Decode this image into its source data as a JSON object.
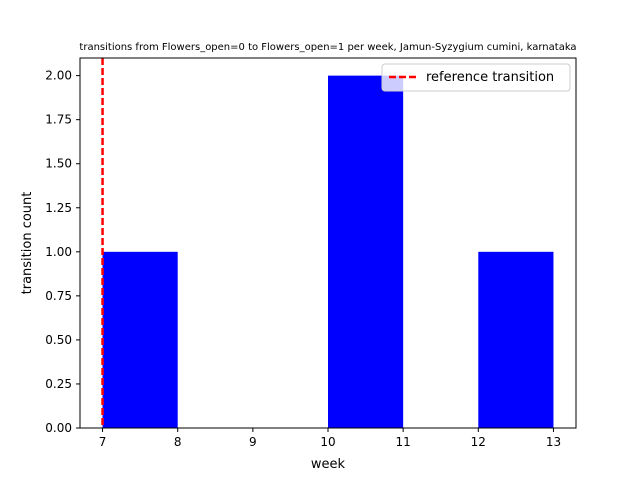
{
  "chart_data": {
    "type": "bar",
    "title": "transitions from Flowers_open=0 to Flowers_open=1 per week, Jamun-Syzygium cumini, karnataka",
    "xlabel": "week",
    "ylabel": "transition count",
    "xlim": [
      6.7,
      13.3
    ],
    "ylim": [
      0,
      2.1
    ],
    "x_ticks": [
      "7",
      "8",
      "9",
      "10",
      "11",
      "12",
      "13"
    ],
    "y_ticks": [
      "0.00",
      "0.25",
      "0.50",
      "0.75",
      "1.00",
      "1.25",
      "1.50",
      "1.75",
      "2.00"
    ],
    "bars": [
      {
        "x_start": 7,
        "x_end": 8,
        "value": 1
      },
      {
        "x_start": 8,
        "x_end": 9,
        "value": 0
      },
      {
        "x_start": 9,
        "x_end": 10,
        "value": 0
      },
      {
        "x_start": 10,
        "x_end": 11,
        "value": 2
      },
      {
        "x_start": 11,
        "x_end": 12,
        "value": 0
      },
      {
        "x_start": 12,
        "x_end": 13,
        "value": 1
      }
    ],
    "bar_color": "#0000ff",
    "reference_line": {
      "x": 7,
      "label": "reference transition",
      "color": "#ff0000",
      "style": "dashed"
    },
    "legend": {
      "position": "top-right"
    },
    "grid": false
  }
}
